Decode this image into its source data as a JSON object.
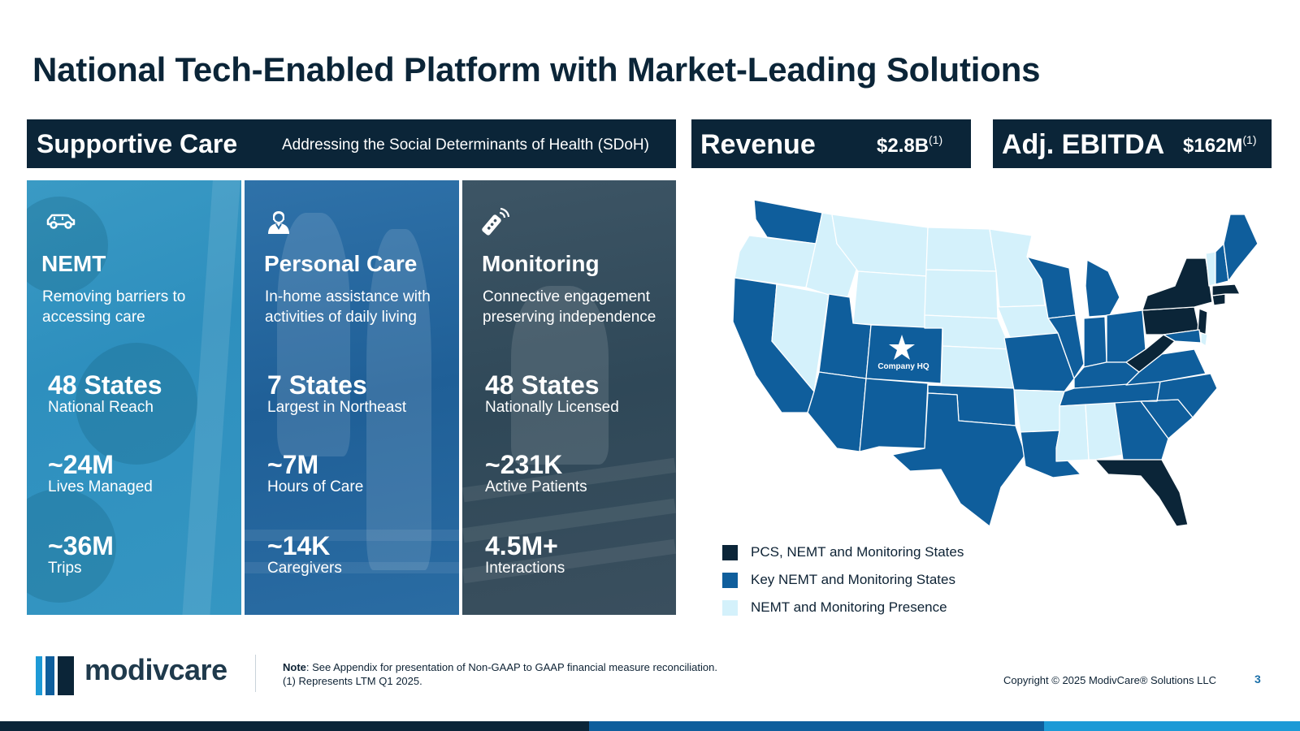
{
  "title": "National Tech-Enabled Platform with Market-Leading Solutions",
  "supportive_care": {
    "heading": "Supportive Care",
    "subheading": "Addressing the Social Determinants of Health (SDoH)"
  },
  "kpis": {
    "revenue": {
      "label": "Revenue",
      "value": "$2.8B",
      "footnote": "(1)"
    },
    "ebitda": {
      "label": "Adj. EBITDA",
      "value": "$162M",
      "footnote": "(1)"
    }
  },
  "cards": [
    {
      "icon": "car-icon",
      "name": "NEMT",
      "desc_line1": "Removing barriers to",
      "desc_line2": "accessing care",
      "stats": [
        {
          "value": "48 States",
          "label": "National Reach"
        },
        {
          "value": "~24M",
          "label": "Lives Managed"
        },
        {
          "value": "~36M",
          "label": "Trips"
        }
      ]
    },
    {
      "icon": "caregiver-icon",
      "name": "Personal Care",
      "desc_line1": "In-home assistance with",
      "desc_line2": "activities of daily living",
      "stats": [
        {
          "value": "7 States",
          "label": "Largest in Northeast"
        },
        {
          "value": "~7M",
          "label": "Hours of Care"
        },
        {
          "value": "~14K",
          "label": "Caregivers"
        }
      ]
    },
    {
      "icon": "remote-signal-icon",
      "name": "Monitoring",
      "desc_line1": "Connective engagement",
      "desc_line2": "preserving independence",
      "stats": [
        {
          "value": "48 States",
          "label": "Nationally Licensed"
        },
        {
          "value": "~231K",
          "label": "Active Patients"
        },
        {
          "value": "4.5M+",
          "label": "Interactions"
        }
      ]
    }
  ],
  "map": {
    "hq_label": "Company HQ",
    "colors": {
      "pcs": "#0b2538",
      "key": "#0f5e9c",
      "presence": "#d4f1fb"
    },
    "legend": [
      {
        "label": "PCS, NEMT and Monitoring States",
        "color": "#0b2538"
      },
      {
        "label": "Key NEMT and Monitoring States",
        "color": "#0f5e9c"
      },
      {
        "label": "NEMT and Monitoring Presence",
        "color": "#d4f1fb"
      }
    ]
  },
  "footer": {
    "logo_text": "modivcare",
    "note_bold": "Note",
    "note_text": ": See Appendix for presentation of Non-GAAP to GAAP financial measure reconciliation.",
    "note_line2": "(1) Represents LTM Q1 2025.",
    "copyright": "Copyright © 2025 ModivCare® Solutions LLC",
    "page_number": "3"
  },
  "brand_colors": {
    "navy": "#0b2538",
    "blue": "#0f5e9c",
    "light_blue": "#1d9ad6"
  }
}
